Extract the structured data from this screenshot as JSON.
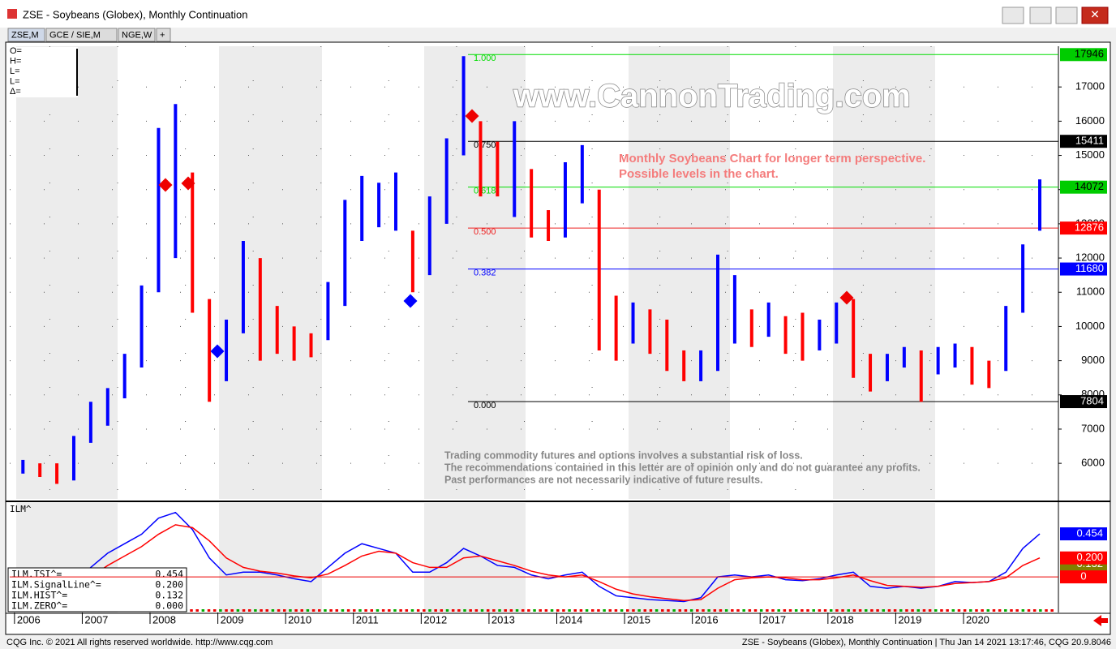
{
  "window": {
    "title": "ZSE - Soybeans (Globex), Monthly Continuation",
    "tabs": [
      "ZSE,M",
      "GCE / SIE,M",
      "NGE,W",
      "+"
    ]
  },
  "ohlc_box": [
    "O=",
    "H=",
    "L=",
    "L=",
    "Δ="
  ],
  "watermark": "www.CannonTrading.com",
  "note": [
    "Monthly Soybeans Chart for longer term perspective.",
    "Possible levels in the chart."
  ],
  "disclaimer": [
    "Trading commodity futures and options involves a substantial risk of loss.",
    "The recommendations contained in this letter are of opinion only and do not guarantee any profits.",
    "Past performances are not necessarily indicative of future results."
  ],
  "chart_data": [
    {
      "type": "range_bar",
      "x": [
        2006.125,
        2006.375,
        2006.625,
        2006.875,
        2007.125,
        2007.375,
        2007.625,
        2007.875,
        2008.125,
        2008.375,
        2008.625,
        2008.875,
        2009.125,
        2009.375,
        2009.625,
        2009.875,
        2010.125,
        2010.375,
        2010.625,
        2010.875,
        2011.125,
        2011.375,
        2011.625,
        2011.875,
        2012.125,
        2012.375,
        2012.625,
        2012.875,
        2013.125,
        2013.375,
        2013.625,
        2013.875,
        2014.125,
        2014.375,
        2014.625,
        2014.875,
        2015.125,
        2015.375,
        2015.625,
        2015.875,
        2016.125,
        2016.375,
        2016.625,
        2016.875,
        2017.125,
        2017.375,
        2017.625,
        2017.875,
        2018.125,
        2018.375,
        2018.625,
        2018.875,
        2019.125,
        2019.375,
        2019.625,
        2019.875,
        2020.125,
        2020.375,
        2020.625,
        2020.875,
        2021.125
      ],
      "high": [
        6100,
        6000,
        6000,
        6800,
        7800,
        8200,
        9200,
        11200,
        15800,
        16500,
        14500,
        10800,
        10200,
        12500,
        12000,
        10600,
        10000,
        9800,
        11300,
        13700,
        14400,
        14200,
        14500,
        12800,
        13800,
        15500,
        17900,
        16000,
        15400,
        16000,
        14600,
        13400,
        14800,
        15300,
        14000,
        10900,
        10700,
        10500,
        10200,
        9300,
        9300,
        12100,
        11500,
        10500,
        10700,
        10300,
        10400,
        10200,
        10700,
        10800,
        9200,
        9200,
        9400,
        9300,
        9400,
        9500,
        9400,
        9000,
        10600,
        12400,
        14300
      ],
      "low": [
        5700,
        5600,
        5400,
        5500,
        6600,
        7100,
        7900,
        8800,
        11000,
        12000,
        10400,
        7800,
        8400,
        9800,
        9000,
        9200,
        9000,
        9100,
        9600,
        10600,
        12500,
        12900,
        12800,
        11000,
        11500,
        13000,
        15000,
        13800,
        13800,
        13200,
        12600,
        12500,
        12600,
        13600,
        9300,
        9000,
        9500,
        9200,
        8700,
        8400,
        8400,
        8700,
        9500,
        9400,
        9700,
        9200,
        9000,
        9300,
        9500,
        8500,
        8100,
        8400,
        8800,
        7800,
        8600,
        8800,
        8300,
        8200,
        8700,
        10400,
        12800
      ],
      "up_color": "#0000ff",
      "down_color": "#ff0000",
      "xlim": [
        2005.93,
        2021.4
      ],
      "xticks": [
        2006,
        2007,
        2008,
        2009,
        2010,
        2011,
        2012,
        2013,
        2014,
        2015,
        2016,
        2017,
        2018,
        2019,
        2020
      ],
      "ylim": [
        4960,
        18190
      ],
      "yticks": [
        6000,
        7000,
        8000,
        9000,
        10000,
        11000,
        12000,
        13000,
        14000,
        15000,
        16000,
        17000
      ],
      "grid": true,
      "levels": [
        {
          "label": "1.000",
          "value": 17946,
          "color": "#00dd00",
          "tag_color": "#00cc00"
        },
        {
          "label": "0.750",
          "value": 15411,
          "color": "#000000",
          "tag_color": "#000000"
        },
        {
          "label": "0.618",
          "value": 14072,
          "color": "#00dd00",
          "tag_color": "#00cc00"
        },
        {
          "label": "0.500",
          "value": 12876,
          "color": "#ee2020",
          "tag_color": "#ff0000"
        },
        {
          "label": "0.382",
          "value": 11680,
          "color": "#0000ff",
          "tag_color": "#0000ff"
        },
        {
          "label": "0.000",
          "value": 7804,
          "color": "#000000",
          "tag_color": "#000000"
        }
      ]
    },
    {
      "type": "line",
      "title": "ILM^",
      "series": [
        {
          "name": "ILM.TSI^=",
          "color": "#0000ff",
          "values": [
            -0.2,
            -0.25,
            -0.2,
            -0.05,
            0.1,
            0.25,
            0.35,
            0.45,
            0.62,
            0.68,
            0.5,
            0.2,
            0.02,
            0.05,
            0.05,
            0.02,
            -0.02,
            -0.05,
            0.1,
            0.25,
            0.35,
            0.3,
            0.25,
            0.05,
            0.05,
            0.15,
            0.3,
            0.22,
            0.12,
            0.1,
            0.02,
            -0.02,
            0.02,
            0.05,
            -0.1,
            -0.2,
            -0.22,
            -0.24,
            -0.25,
            -0.26,
            -0.22,
            0.0,
            0.02,
            0.0,
            0.02,
            -0.03,
            -0.04,
            -0.02,
            0.02,
            0.05,
            -0.1,
            -0.12,
            -0.1,
            -0.12,
            -0.1,
            -0.05,
            -0.06,
            -0.05,
            0.05,
            0.3,
            0.454
          ]
        },
        {
          "name": "ILM.SignalLine^=",
          "color": "#ff0000",
          "values": [
            -0.25,
            -0.22,
            -0.2,
            -0.12,
            0.0,
            0.12,
            0.22,
            0.32,
            0.45,
            0.55,
            0.52,
            0.38,
            0.2,
            0.1,
            0.06,
            0.04,
            0.01,
            -0.01,
            0.03,
            0.12,
            0.22,
            0.27,
            0.25,
            0.15,
            0.1,
            0.1,
            0.2,
            0.22,
            0.17,
            0.12,
            0.06,
            0.02,
            0.0,
            0.02,
            -0.05,
            -0.13,
            -0.18,
            -0.21,
            -0.23,
            -0.25,
            -0.24,
            -0.12,
            -0.03,
            -0.01,
            0.0,
            -0.01,
            -0.03,
            -0.03,
            -0.01,
            0.02,
            -0.04,
            -0.09,
            -0.1,
            -0.11,
            -0.1,
            -0.07,
            -0.06,
            -0.05,
            -0.01,
            0.12,
            0.2
          ]
        }
      ],
      "ylim": [
        -0.376,
        0.78
      ],
      "readout": {
        "names": [
          "ILM.TSI^=",
          "ILM.SignalLine^=",
          "ILM.HIST^=",
          "ILM.ZERO^="
        ],
        "values": [
          0.454,
          0.2,
          0.132,
          0
        ],
        "value_labels": [
          "0.454",
          "0.200",
          "0.132",
          "0.000"
        ]
      },
      "tag_colors": [
        "#0000ff",
        "#ff0000",
        "#808000",
        "#ff0000"
      ]
    }
  ],
  "footer": {
    "left": "CQG Inc. © 2021 All rights reserved worldwide. http://www.cqg.com",
    "right": "ZSE - Soybeans (Globex), Monthly Continuation | Thu Jan 14 2021 13:17:46, CQG 20.9.8046"
  }
}
